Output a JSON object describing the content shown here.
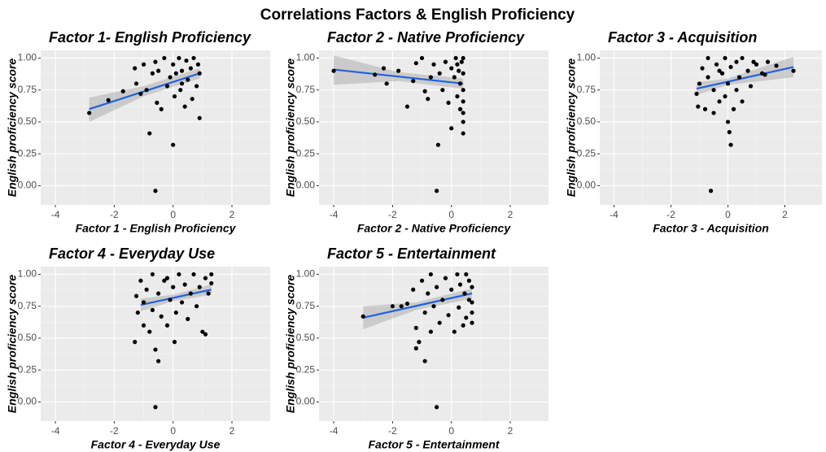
{
  "title": "Correlations Factors & English Proficiency",
  "chart_data": [
    {
      "type": "scatter",
      "title": "Factor 1- English Proficiency",
      "x_label": "Factor 1 - English Proficiency",
      "y_label": "English proficiency score",
      "xlim": [
        -4.5,
        3.3
      ],
      "ylim": [
        -0.15,
        1.06
      ],
      "xticks": [
        -4,
        -2,
        0,
        2
      ],
      "yticks": [
        {
          "value": 0,
          "label": "0.00"
        },
        {
          "value": 0.25,
          "label": "0.25"
        },
        {
          "value": 0.5,
          "label": "0.50"
        },
        {
          "value": 0.75,
          "label": "0.75"
        },
        {
          "value": 1,
          "label": "1.00"
        }
      ],
      "grid": true,
      "color": "#000000",
      "x": [
        -2.85,
        -2.2,
        -1.7,
        -1.3,
        -1.25,
        -1.1,
        -1.0,
        -0.9,
        -0.8,
        -0.7,
        -0.6,
        -0.55,
        -0.5,
        -0.4,
        -0.3,
        -0.2,
        -0.1,
        0,
        0,
        0.05,
        0.1,
        0.2,
        0.25,
        0.3,
        0.4,
        0.45,
        0.5,
        0.6,
        0.65,
        0.7,
        0.8,
        0.85,
        0.9,
        0.9,
        -0.6,
        0.3
      ],
      "values": [
        0.57,
        0.67,
        0.74,
        0.92,
        0.8,
        0.72,
        0.95,
        0.75,
        0.41,
        0.88,
        -0.04,
        0.65,
        0.9,
        0.6,
        1.0,
        0.78,
        0.85,
        0.32,
        0.95,
        0.7,
        0.88,
        1.0,
        0.75,
        0.9,
        0.62,
        0.98,
        0.83,
        0.92,
        0.68,
        1.0,
        0.78,
        0.95,
        0.53,
        0.88,
        0.97,
        0.8
      ],
      "fit": {
        "color": "#1f62db",
        "x": [
          -2.85,
          -1,
          0.9
        ],
        "values": [
          0.6,
          0.738,
          0.88
        ],
        "lower": [
          0.5,
          0.7,
          0.84
        ],
        "upper": [
          0.69,
          0.78,
          0.92
        ]
      }
    },
    {
      "type": "scatter",
      "title": "Factor 2 - Native Proficiency",
      "x_label": "Factor 2 - Native Proficiency",
      "y_label": "English proficiency score",
      "xlim": [
        -4.5,
        3.3
      ],
      "ylim": [
        -0.15,
        1.06
      ],
      "xticks": [
        -4,
        -2,
        0,
        2
      ],
      "yticks": [
        {
          "value": 0,
          "label": "0.00"
        },
        {
          "value": 0.25,
          "label": "0.25"
        },
        {
          "value": 0.5,
          "label": "0.50"
        },
        {
          "value": 0.75,
          "label": "0.75"
        },
        {
          "value": 1,
          "label": "1.00"
        }
      ],
      "grid": true,
      "color": "#000000",
      "x": [
        -4,
        -2.6,
        -2.3,
        -2.2,
        -1.8,
        -1.5,
        -1.3,
        -1.2,
        -1.0,
        -0.9,
        -0.8,
        -0.6,
        -0.5,
        -0.45,
        -0.4,
        -0.3,
        -0.2,
        -0.1,
        0,
        0,
        0.1,
        0.15,
        0.2,
        0.25,
        0.3,
        0.3,
        0.35,
        0.4,
        0.4,
        0.4,
        0.4,
        0.4,
        0.4,
        0.4,
        -0.7,
        0.2
      ],
      "values": [
        0.9,
        0.87,
        0.92,
        0.8,
        0.9,
        0.62,
        0.82,
        0.96,
        1.0,
        0.74,
        0.68,
        0.95,
        -0.04,
        0.32,
        0.88,
        0.75,
        0.97,
        0.65,
        0.92,
        0.45,
        0.85,
        1.0,
        0.7,
        0.9,
        0.6,
        0.8,
        0.97,
        0.41,
        0.5,
        0.57,
        0.66,
        0.75,
        0.88,
        1.0,
        0.85,
        0.95
      ],
      "fit": {
        "color": "#1f62db",
        "x": [
          -4,
          -1.8,
          0.4
        ],
        "values": [
          0.91,
          0.855,
          0.8
        ],
        "lower": [
          0.79,
          0.82,
          0.76
        ],
        "upper": [
          1.02,
          0.89,
          0.84
        ]
      }
    },
    {
      "type": "scatter",
      "title": "Factor 3 - Acquisition",
      "x_label": "Factor 3 - Acquisition",
      "y_label": "English proficiency score",
      "xlim": [
        -4.5,
        3.3
      ],
      "ylim": [
        -0.15,
        1.06
      ],
      "xticks": [
        -4,
        -2,
        0,
        2
      ],
      "yticks": [
        {
          "value": 0,
          "label": "0.00"
        },
        {
          "value": 0.25,
          "label": "0.25"
        },
        {
          "value": 0.5,
          "label": "0.50"
        },
        {
          "value": 0.75,
          "label": "0.75"
        },
        {
          "value": 1,
          "label": "1.00"
        }
      ],
      "grid": true,
      "color": "#000000",
      "x": [
        -1.1,
        -1.05,
        -1.0,
        -0.9,
        -0.8,
        -0.7,
        -0.7,
        -0.6,
        -0.5,
        -0.5,
        -0.4,
        -0.3,
        -0.2,
        -0.1,
        -0.1,
        0,
        0,
        0.05,
        0.1,
        0.1,
        0.2,
        0.3,
        0.3,
        0.4,
        0.5,
        0.5,
        0.7,
        0.8,
        0.9,
        1.0,
        1.2,
        1.3,
        1.4,
        1.7,
        2.3,
        -0.3
      ],
      "values": [
        0.72,
        0.62,
        0.8,
        0.92,
        0.6,
        0.85,
        1.0,
        -0.04,
        0.57,
        0.75,
        0.95,
        0.66,
        0.88,
        1.0,
        0.7,
        0.5,
        0.8,
        0.42,
        0.32,
        0.93,
        0.6,
        0.75,
        0.97,
        0.85,
        1.0,
        0.66,
        0.9,
        0.78,
        0.97,
        0.95,
        0.88,
        0.87,
        0.97,
        0.94,
        0.9,
        0.9
      ],
      "fit": {
        "color": "#1f62db",
        "x": [
          -1.1,
          0,
          2.3
        ],
        "values": [
          0.76,
          0.815,
          0.93
        ],
        "lower": [
          0.71,
          0.79,
          0.85
        ],
        "upper": [
          0.81,
          0.84,
          1.01
        ]
      }
    },
    {
      "type": "scatter",
      "title": "Factor 4 - Everyday Use",
      "x_label": "Factor 4 - Everyday Use",
      "y_label": "English proficiency score",
      "xlim": [
        -4.5,
        3.3
      ],
      "ylim": [
        -0.15,
        1.06
      ],
      "xticks": [
        -4,
        -2,
        0,
        2
      ],
      "yticks": [
        {
          "value": 0,
          "label": "0.00"
        },
        {
          "value": 0.25,
          "label": "0.25"
        },
        {
          "value": 0.5,
          "label": "0.50"
        },
        {
          "value": 0.75,
          "label": "0.75"
        },
        {
          "value": 1,
          "label": "1.00"
        }
      ],
      "grid": true,
      "color": "#000000",
      "x": [
        -1.3,
        -1.25,
        -1.2,
        -1.1,
        -1.0,
        -1.0,
        -0.9,
        -0.8,
        -0.7,
        -0.7,
        -0.6,
        -0.6,
        -0.5,
        -0.5,
        -0.4,
        -0.3,
        -0.2,
        -0.1,
        0,
        0.05,
        0.1,
        0.2,
        0.3,
        0.4,
        0.5,
        0.6,
        0.7,
        0.8,
        0.9,
        1.0,
        1.1,
        1.1,
        1.2,
        1.3,
        1.3,
        -0.2
      ],
      "values": [
        0.47,
        0.83,
        0.7,
        0.95,
        0.6,
        0.78,
        0.88,
        0.55,
        0.72,
        1.0,
        0.41,
        -0.04,
        0.32,
        0.85,
        0.67,
        0.95,
        0.6,
        0.8,
        0.9,
        0.47,
        0.7,
        1.0,
        0.78,
        0.92,
        0.65,
        0.85,
        1.0,
        0.75,
        0.9,
        0.55,
        0.53,
        0.97,
        0.85,
        0.93,
        1.0,
        0.97
      ],
      "fit": {
        "color": "#1f62db",
        "x": [
          -1.1,
          0,
          1.3
        ],
        "values": [
          0.76,
          0.815,
          0.88
        ],
        "lower": [
          0.71,
          0.79,
          0.84
        ],
        "upper": [
          0.81,
          0.84,
          0.92
        ]
      }
    },
    {
      "type": "scatter",
      "title": "Factor 5 - Entertainment",
      "x_label": "Factor 5 - Entertainment",
      "y_label": "English proficiency score",
      "xlim": [
        -4.5,
        3.3
      ],
      "ylim": [
        -0.15,
        1.06
      ],
      "xticks": [
        -4,
        -2,
        0,
        2
      ],
      "yticks": [
        {
          "value": 0,
          "label": "0.00"
        },
        {
          "value": 0.25,
          "label": "0.25"
        },
        {
          "value": 0.5,
          "label": "0.50"
        },
        {
          "value": 0.75,
          "label": "0.75"
        },
        {
          "value": 1,
          "label": "1.00"
        }
      ],
      "grid": true,
      "color": "#000000",
      "x": [
        -3,
        -2,
        -1.7,
        -1.5,
        -1.3,
        -1.2,
        -1.2,
        -1.1,
        -1.0,
        -0.9,
        -0.9,
        -0.8,
        -0.7,
        -0.7,
        -0.6,
        -0.5,
        -0.5,
        -0.4,
        -0.3,
        -0.2,
        -0.1,
        0,
        0.1,
        0.2,
        0.25,
        0.3,
        0.4,
        0.45,
        0.5,
        0.5,
        0.6,
        0.6,
        0.7,
        0.7,
        0.7,
        0.7
      ],
      "values": [
        0.67,
        0.75,
        0.75,
        0.77,
        0.88,
        0.58,
        0.42,
        0.47,
        0.95,
        0.32,
        0.7,
        0.85,
        0.55,
        1.0,
        0.75,
        -0.04,
        0.9,
        0.62,
        0.8,
        0.97,
        0.68,
        0.88,
        0.55,
        1.0,
        0.74,
        0.92,
        0.6,
        0.85,
        0.66,
        1.0,
        0.8,
        0.95,
        0.62,
        0.7,
        0.9,
        0.78
      ],
      "fit": {
        "color": "#1f62db",
        "x": [
          -3,
          -1.2,
          0.7
        ],
        "values": [
          0.66,
          0.752,
          0.85
        ],
        "lower": [
          0.57,
          0.72,
          0.81
        ],
        "upper": [
          0.75,
          0.78,
          0.89
        ]
      }
    }
  ]
}
